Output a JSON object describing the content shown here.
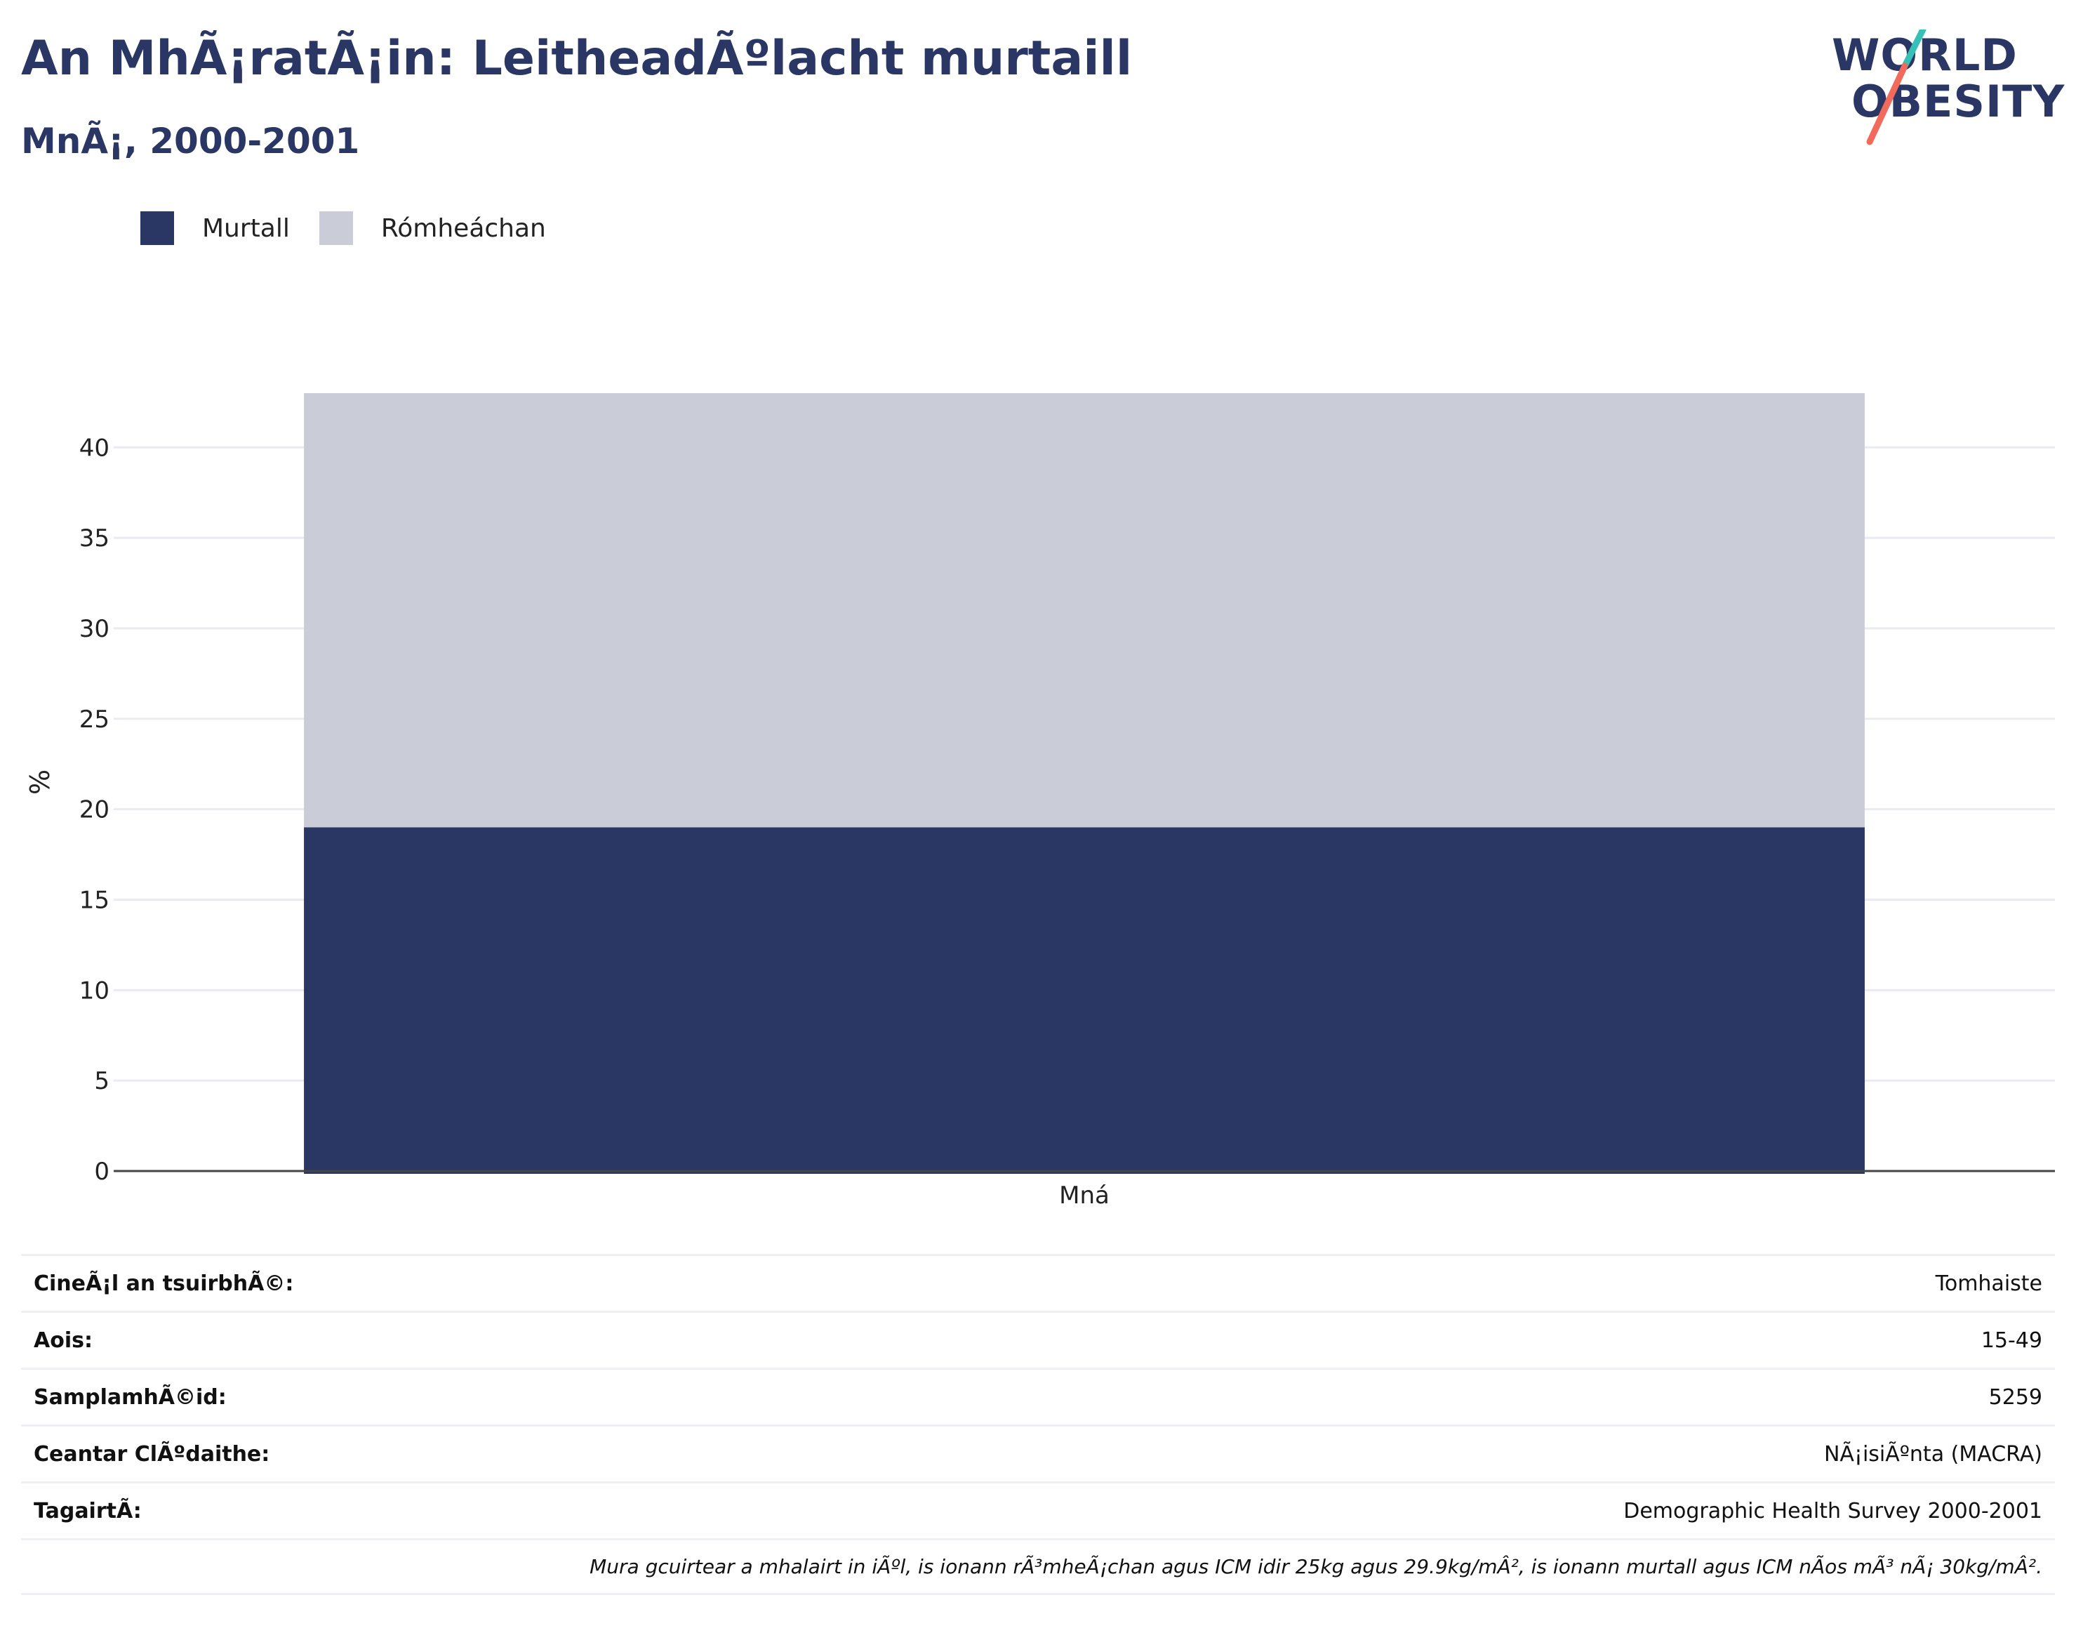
{
  "header": {
    "title": "An MhÃ¡ratÃ¡in: LeitheadÃºlacht murtaill",
    "subtitle": "MnÃ¡, 2000-2001"
  },
  "logo": {
    "line1": "WORLD",
    "line2": "OBESITY"
  },
  "colors": {
    "primary": "#2a3663",
    "secondary": "#cacdd8",
    "accent_teal": "#37c0b5",
    "accent_coral": "#f26a5b"
  },
  "chart_data": {
    "type": "bar",
    "stacked": true,
    "categories": [
      "Mná"
    ],
    "series": [
      {
        "name": "Murtall",
        "values": [
          19
        ],
        "color": "#2a3663"
      },
      {
        "name": "Rómheáchan",
        "values": [
          24
        ],
        "color": "#cacdd8"
      }
    ],
    "ylabel": "%",
    "xlabel": "",
    "ylim": [
      0,
      43
    ],
    "yticks": [
      0,
      5,
      10,
      15,
      20,
      25,
      30,
      35,
      40
    ],
    "grid": true,
    "legend_position": "top-left"
  },
  "details": {
    "rows": [
      {
        "label": "CineÃ¡l an tsuirbhÃ©:",
        "value": "Tomhaiste"
      },
      {
        "label": "Aois:",
        "value": "15-49"
      },
      {
        "label": "SamplamhÃ©id:",
        "value": "5259"
      },
      {
        "label": "Ceantar ClÃºdaithe:",
        "value": "NÃ¡isiÃºnta (MACRA)"
      },
      {
        "label": "TagairtÃ:",
        "value": "Demographic Health Survey 2000-2001"
      }
    ],
    "note": "Mura gcuirtear a mhalairt in iÃºl, is ionann rÃ³mheÃ¡chan agus ICM idir 25kg agus 29.9kg/mÂ², is ionann murtall agus ICM nÃos mÃ³ nÃ¡ 30kg/mÂ²."
  }
}
